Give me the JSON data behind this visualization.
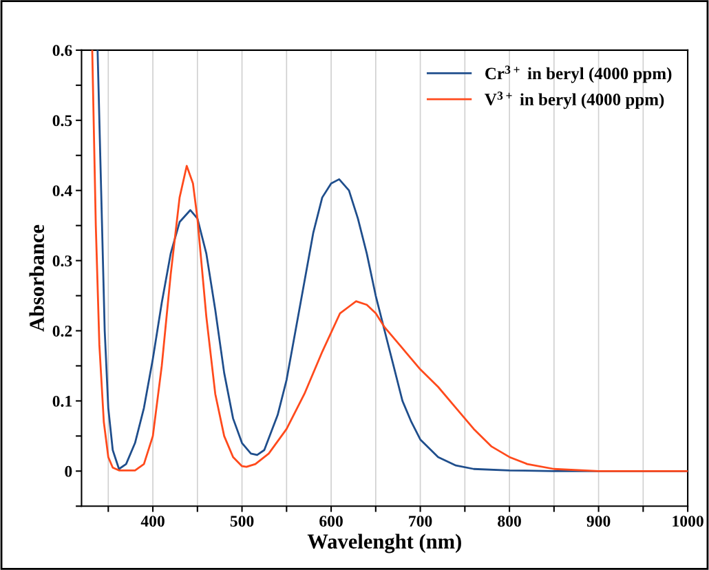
{
  "chart_data": {
    "type": "line",
    "xlabel": "Wavelenght (nm)",
    "ylabel": "Absorbance",
    "xlim": [
      320,
      1000
    ],
    "ylim": [
      -0.05,
      0.6
    ],
    "xticks": [
      {
        "value": 350,
        "label": null
      },
      400,
      {
        "value": 450,
        "label": null
      },
      500,
      {
        "value": 550,
        "label": null
      },
      600,
      {
        "value": 650,
        "label": null
      },
      700,
      {
        "value": 750,
        "label": null
      },
      800,
      {
        "value": 850,
        "label": null
      },
      900,
      {
        "value": 950,
        "label": null
      },
      1000
    ],
    "yticks": [
      {
        "value": -0.05,
        "label": null
      },
      0,
      {
        "value": 0.05,
        "label": null
      },
      0.1,
      {
        "value": 0.15,
        "label": null
      },
      0.2,
      {
        "value": 0.25,
        "label": null
      },
      0.3,
      {
        "value": 0.35,
        "label": null
      },
      0.4,
      {
        "value": 0.45,
        "label": null
      },
      0.5,
      {
        "value": 0.55,
        "label": null
      },
      0.6
    ],
    "grid": "x",
    "legend": "top right",
    "marker": "none",
    "line_style": "solid",
    "series": [
      {
        "name": "Cr$^{3+}$ in beryl (4000 ppm)",
        "color": "#1f4e8c",
        "x": [
          338,
          342,
          346,
          350,
          355,
          362,
          370,
          380,
          390,
          400,
          410,
          420,
          430,
          442,
          450,
          460,
          470,
          480,
          490,
          500,
          510,
          517,
          525,
          540,
          550,
          560,
          570,
          580,
          590,
          600,
          609,
          620,
          630,
          640,
          650,
          660,
          670,
          680,
          690,
          700,
          720,
          740,
          760,
          800,
          850,
          900,
          1000
        ],
        "values": [
          0.6,
          0.4,
          0.2,
          0.09,
          0.03,
          0.003,
          0.01,
          0.04,
          0.09,
          0.16,
          0.24,
          0.31,
          0.355,
          0.372,
          0.36,
          0.31,
          0.23,
          0.14,
          0.075,
          0.04,
          0.025,
          0.023,
          0.03,
          0.08,
          0.13,
          0.2,
          0.27,
          0.34,
          0.39,
          0.41,
          0.416,
          0.4,
          0.36,
          0.31,
          0.25,
          0.2,
          0.15,
          0.1,
          0.07,
          0.045,
          0.02,
          0.008,
          0.003,
          0.001,
          0,
          0,
          0
        ]
      },
      {
        "name": "V$^{3+}$ in beryl (4000 ppm)",
        "color": "#ff4a1c",
        "x": [
          332,
          336,
          340,
          345,
          350,
          355,
          362,
          380,
          390,
          400,
          410,
          420,
          430,
          438,
          445,
          450,
          460,
          470,
          480,
          490,
          500,
          505,
          515,
          530,
          550,
          570,
          590,
          610,
          628,
          640,
          650,
          660,
          680,
          700,
          720,
          740,
          760,
          780,
          800,
          820,
          850,
          900,
          1000
        ],
        "values": [
          0.6,
          0.35,
          0.18,
          0.07,
          0.02,
          0.005,
          0.001,
          0.001,
          0.01,
          0.05,
          0.15,
          0.28,
          0.39,
          0.435,
          0.41,
          0.36,
          0.22,
          0.11,
          0.05,
          0.02,
          0.007,
          0.006,
          0.01,
          0.025,
          0.06,
          0.11,
          0.17,
          0.225,
          0.242,
          0.237,
          0.225,
          0.205,
          0.175,
          0.145,
          0.12,
          0.09,
          0.06,
          0.035,
          0.02,
          0.01,
          0.003,
          0,
          0
        ]
      }
    ]
  }
}
